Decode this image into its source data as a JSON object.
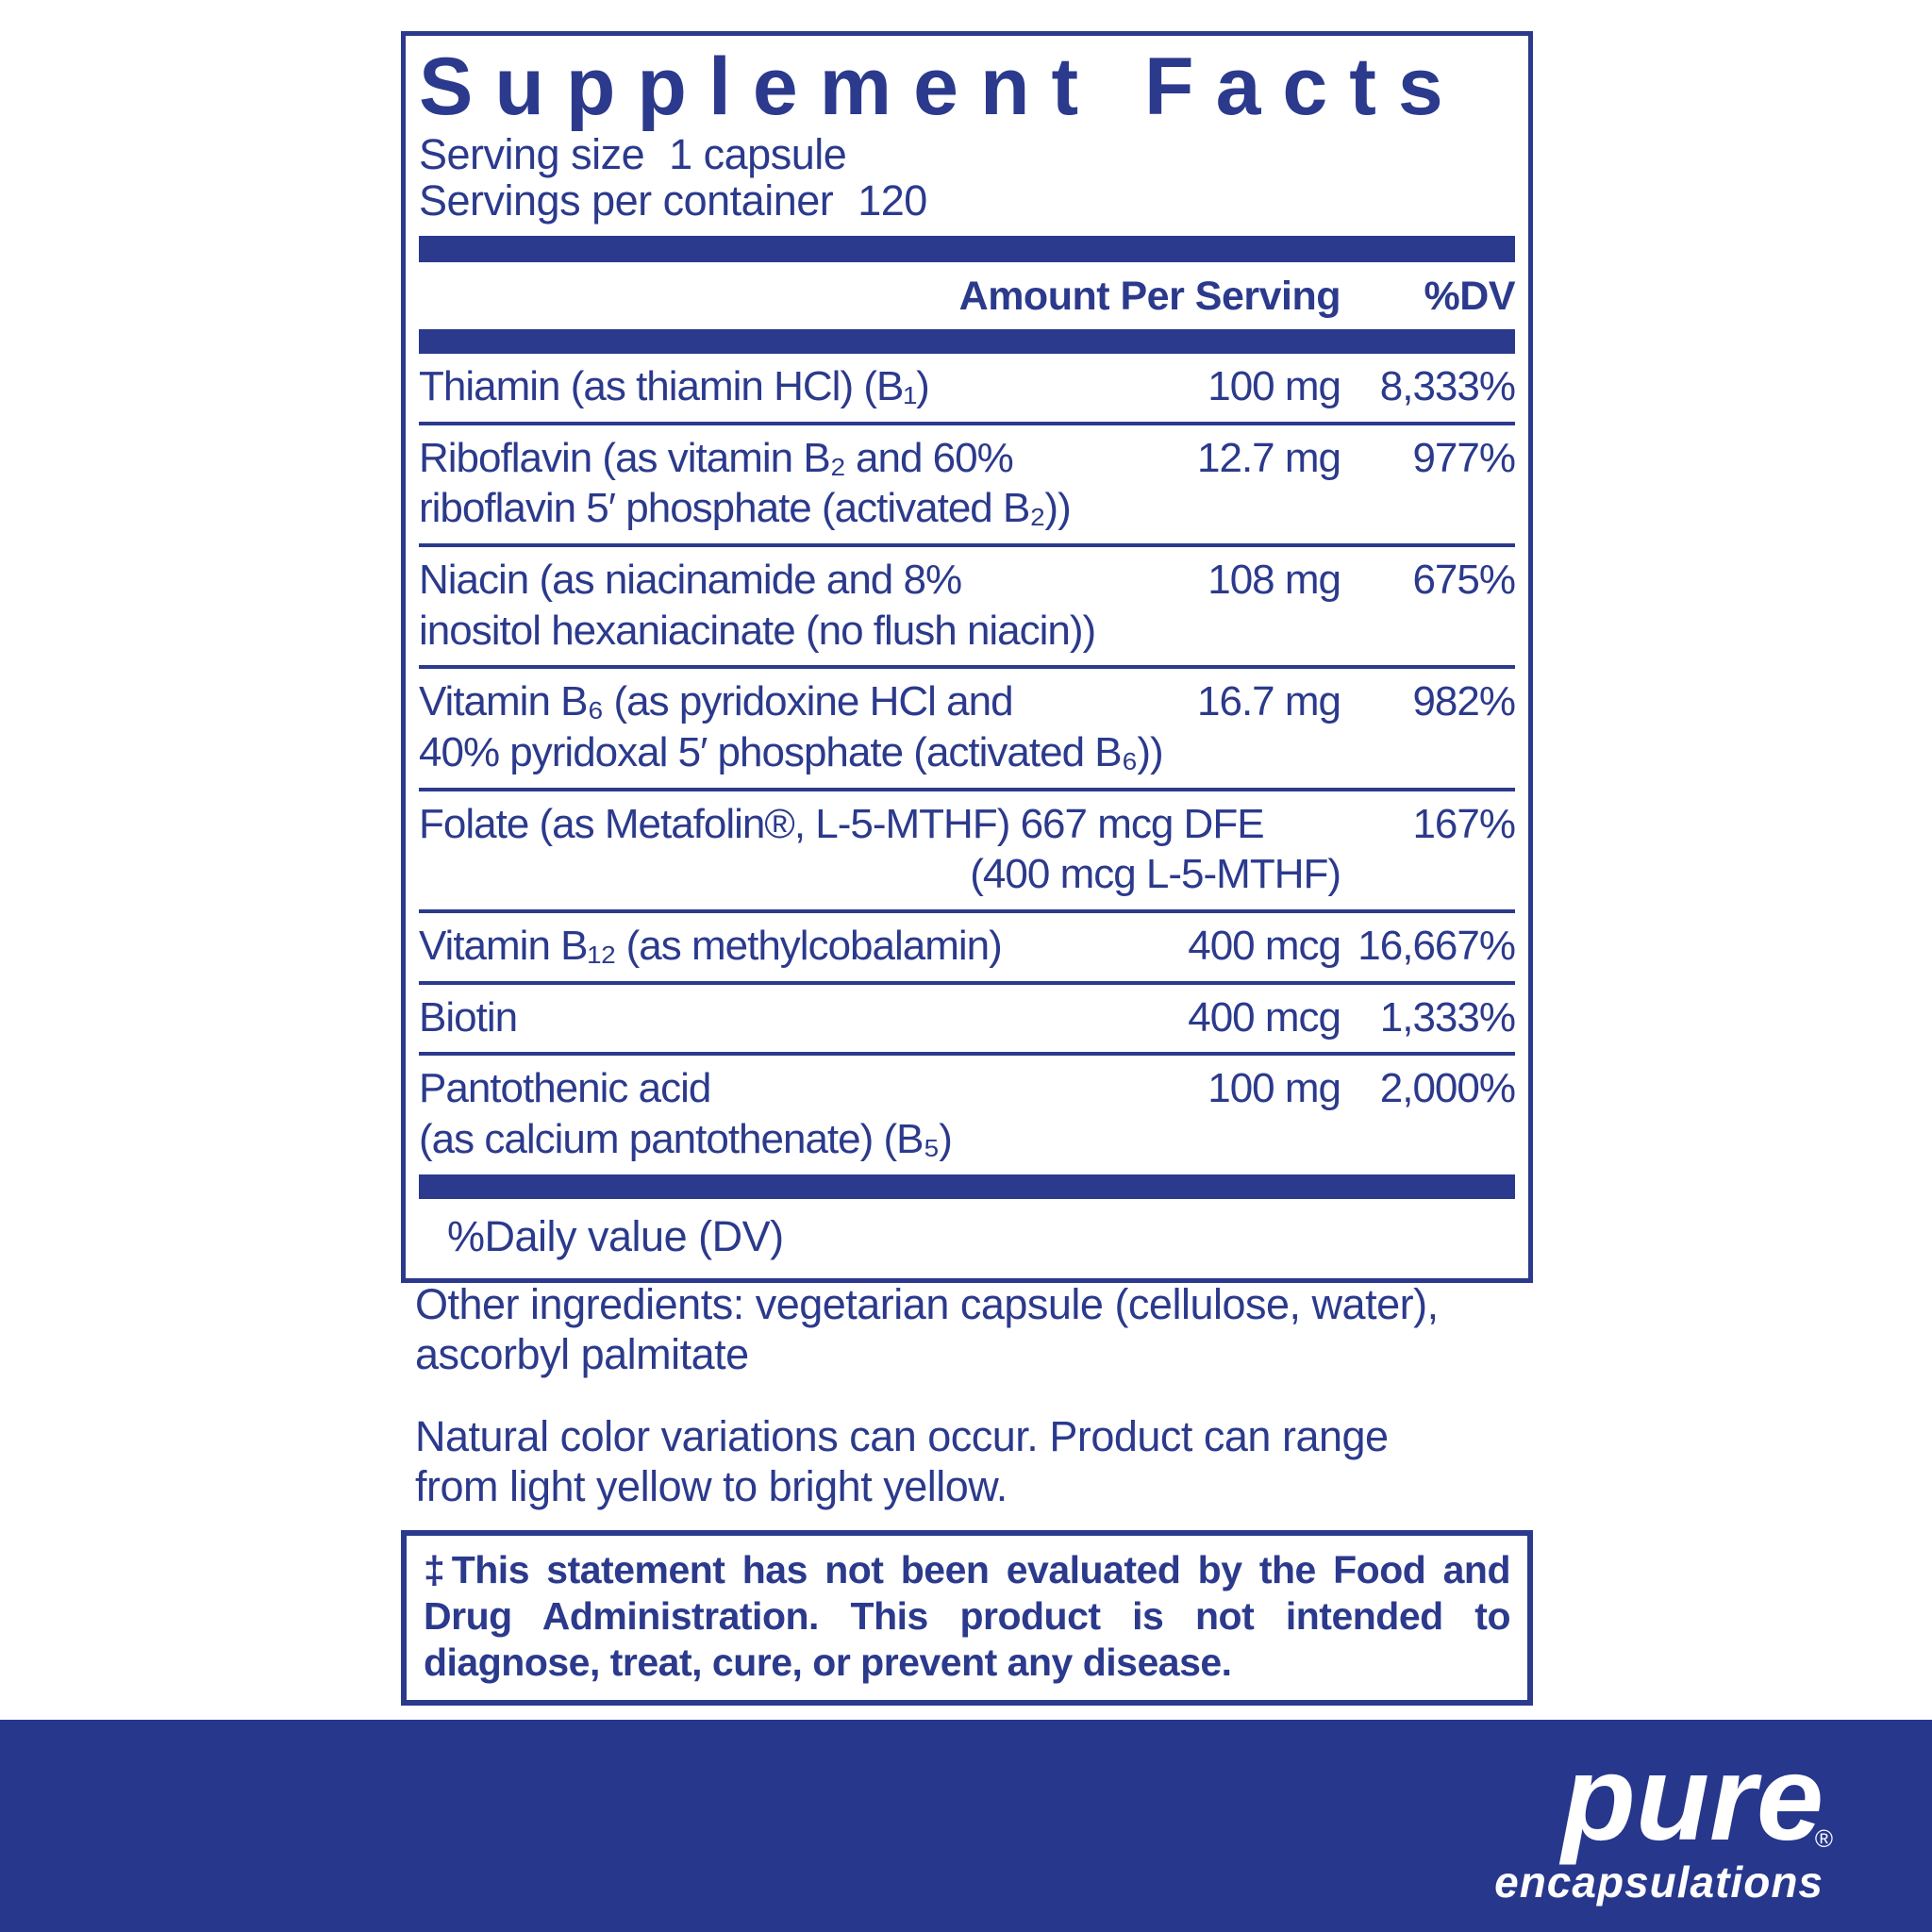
{
  "colors": {
    "label_navy": "#2b3a8c",
    "footer_blue": "#27378c",
    "background": "#ffffff",
    "logo_white": "#ffffff"
  },
  "panel": {
    "title": "Supplement Facts",
    "serving_size_label": "Serving size",
    "serving_size_value": "1 capsule",
    "servings_per_container_label": "Servings per container",
    "servings_per_container_value": "120"
  },
  "table": {
    "header": {
      "amount": "Amount Per Serving",
      "dv": "%DV"
    },
    "rows": [
      {
        "line1": "Thiamin (as thiamin HCl) (B₁)",
        "amount": "100 mg",
        "dv": "8,333%"
      },
      {
        "line1": "Riboflavin (as vitamin B₂ and 60%",
        "line2": "riboflavin 5′ phosphate (activated B₂))",
        "amount": "12.7 mg",
        "dv": "977%"
      },
      {
        "line1": "Niacin (as niacinamide and 8%",
        "line2": "inositol hexaniacinate (no flush niacin))",
        "amount": "108 mg",
        "dv": "675%"
      },
      {
        "line1": "Vitamin B₆ (as pyridoxine HCl and",
        "line2": "40% pyridoxal 5′ phosphate (activated B₆))",
        "amount": "16.7 mg",
        "dv": "982%"
      },
      {
        "line1": "Folate (as Metafolin®, L-5-MTHF) 667 mcg DFE",
        "line2": "(400 mcg L-5-MTHF)",
        "amount": "",
        "dv": "167%"
      },
      {
        "line1": "Vitamin B₁₂ (as methylcobalamin)",
        "amount": "400 mcg",
        "dv": "16,667%"
      },
      {
        "line1": "Biotin",
        "amount": "400 mcg",
        "dv": "1,333%"
      },
      {
        "line1": "Pantothenic acid",
        "line2": "(as calcium pantothenate) (B₅)",
        "amount": "100 mg",
        "dv": "2,000%"
      }
    ],
    "footnote": "%Daily value (DV)"
  },
  "notes": {
    "other_ingredients_line1": "Other ingredients: vegetarian capsule (cellulose, water),",
    "other_ingredients_line2": "ascorbyl palmitate",
    "color_note_line1": "Natural color variations can occur. Product can range",
    "color_note_line2": "from light yellow to bright yellow."
  },
  "disclaimer": {
    "line1": "‡This statement has not been evaluated by the Food and",
    "line2": "Drug Administration. This product is not intended to",
    "line3": "diagnose, treat, cure, or prevent any disease."
  },
  "footer": {
    "brand": "pure",
    "brand_sub": "encapsulations",
    "registered_mark": "®"
  }
}
